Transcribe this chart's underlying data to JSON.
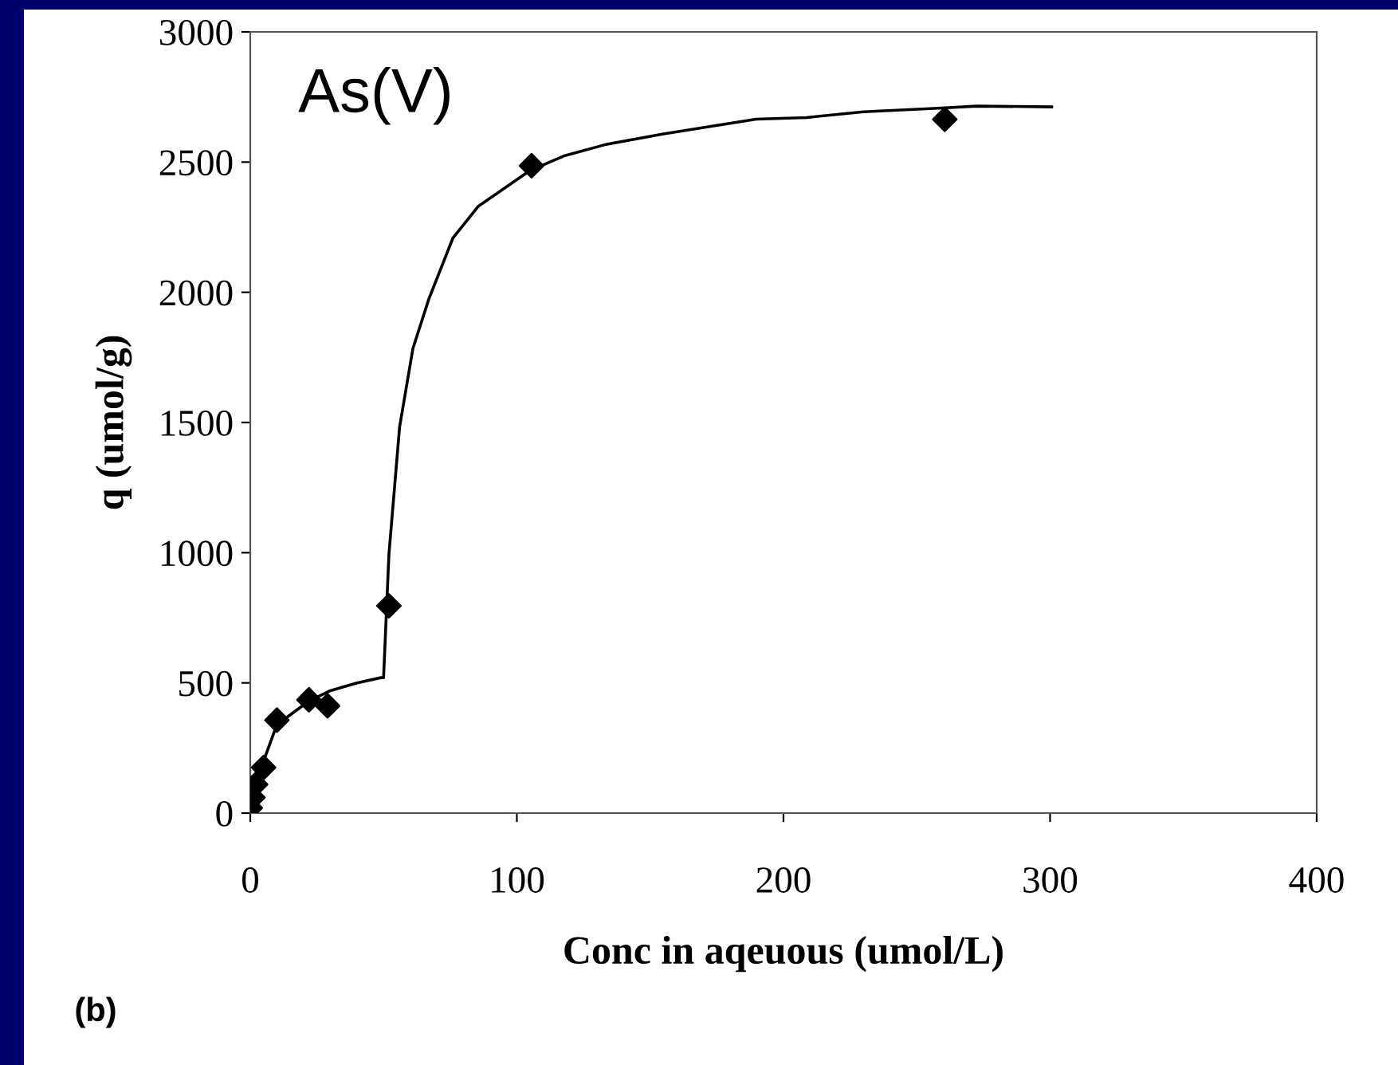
{
  "chart_data": {
    "type": "scatter",
    "xlabel": "Conc in aqeuous (umol/L)",
    "ylabel": "q (umol/g)",
    "annotations": [
      "As(V)",
      "(b)"
    ],
    "xlim": [
      0,
      400
    ],
    "xticks": [
      0,
      100,
      200,
      300,
      400
    ],
    "ylim": [
      0,
      3000
    ],
    "yticks": [
      0,
      500,
      1000,
      1500,
      2000,
      2500,
      3000
    ],
    "grid": false,
    "legend": false,
    "series": [
      {
        "type": "line",
        "color": "#000000",
        "marker": "none",
        "line_style": "solid",
        "x": [
          0,
          2,
          5,
          10,
          22,
          30,
          40,
          49,
          50,
          52,
          56,
          61,
          67,
          76,
          85.5,
          105,
          117.5,
          133.5,
          155,
          181.7,
          189.7,
          208.6,
          230,
          256.5,
          272.5,
          300.6
        ],
        "values": [
          0,
          110,
          200,
          340,
          430,
          470,
          500,
          520,
          520,
          992,
          1482,
          1784,
          1975,
          2208,
          2330,
          2468,
          2523,
          2568,
          2608,
          2652,
          2665,
          2671,
          2693,
          2706,
          2715,
          2712
        ]
      },
      {
        "color": "#000000",
        "marker": "diamond",
        "x": [
          0,
          1,
          2,
          5,
          10,
          22,
          29,
          52,
          105.5,
          260.5
        ],
        "values": [
          20,
          60,
          110,
          175,
          357,
          435,
          412,
          796,
          2486,
          2664
        ]
      }
    ]
  }
}
